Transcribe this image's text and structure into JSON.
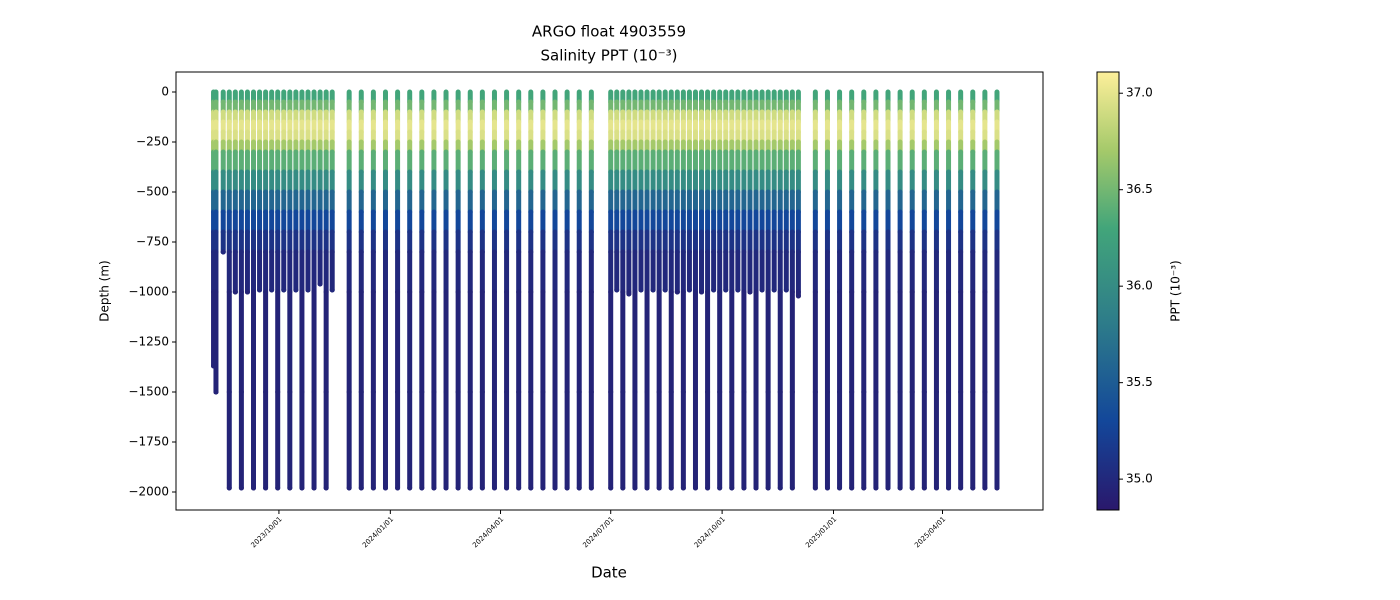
{
  "chart_data": {
    "type": "scatter",
    "title": "ARGO float 4903559",
    "subtitle": "Salinity PPT (10⁻³)",
    "x_label": "Date",
    "y_label": "Depth (m)",
    "colorbar_label": "PPT (10⁻³)",
    "xlim": [
      "2023/07/08",
      "2025/06/23"
    ],
    "xticks": [
      "2023/10/01",
      "2024/01/01",
      "2024/04/01",
      "2024/07/01",
      "2024/10/01",
      "2025/01/01",
      "2025/04/01"
    ],
    "ylim": [
      -2090,
      100
    ],
    "yticks": [
      0,
      {
        "value": -250,
        "label": "−250"
      },
      {
        "value": -500,
        "label": "−500"
      },
      {
        "value": -750,
        "label": "−750"
      },
      {
        "value": -1000,
        "label": "−1000"
      },
      {
        "value": -1250,
        "label": "−1250"
      },
      {
        "value": -1500,
        "label": "−1500"
      },
      {
        "value": -1750,
        "label": "−1750"
      },
      {
        "value": -2000,
        "label": "−2000"
      }
    ],
    "clim": [
      34.84,
      37.11
    ],
    "cticks": [
      {
        "value": 35.0,
        "label": "35.0"
      },
      {
        "value": 35.5,
        "label": "35.5"
      },
      {
        "value": 36.0,
        "label": "36.0"
      },
      {
        "value": 36.5,
        "label": "36.5"
      },
      {
        "value": 37.0,
        "label": "37.0"
      }
    ],
    "colormap": [
      {
        "value": 34.84,
        "color": "#2a186c"
      },
      {
        "value": 35.3,
        "color": "#13479a"
      },
      {
        "value": 35.8,
        "color": "#2d7b8a"
      },
      {
        "value": 36.3,
        "color": "#42a57a"
      },
      {
        "value": 36.7,
        "color": "#a4c96a"
      },
      {
        "value": 37.11,
        "color": "#fdef9a"
      }
    ],
    "depths": [
      0,
      -50,
      -100,
      -150,
      -200,
      -250,
      -300,
      -400,
      -500,
      -600,
      -700,
      -800,
      -1000,
      -1500,
      -2000
    ],
    "salinity": [
      36.3,
      36.5,
      36.9,
      37.0,
      36.95,
      36.7,
      36.4,
      36.0,
      35.6,
      35.3,
      35.1,
      35.0,
      34.95,
      34.95,
      34.97
    ],
    "dates": [
      "2023/08/08",
      "2023/08/10",
      "2023/08/16",
      "2023/08/21",
      "2023/08/26",
      "2023/08/31",
      "2023/09/05",
      "2023/09/10",
      "2023/09/15",
      "2023/09/20",
      "2023/09/25",
      "2023/09/30",
      "2023/10/05",
      "2023/10/10",
      "2023/10/15",
      "2023/10/20",
      "2023/10/25",
      "2023/10/30",
      "2023/11/04",
      "2023/11/09",
      "2023/11/14",
      "2023/11/28",
      "2023/12/08",
      "2023/12/18",
      "2023/12/28",
      "2024/01/07",
      "2024/01/17",
      "2024/01/27",
      "2024/02/06",
      "2024/02/16",
      "2024/02/26",
      "2024/03/07",
      "2024/03/17",
      "2024/03/27",
      "2024/04/06",
      "2024/04/16",
      "2024/04/26",
      "2024/05/06",
      "2024/05/16",
      "2024/05/26",
      "2024/06/05",
      "2024/06/15",
      "2024/07/01",
      "2024/07/06",
      "2024/07/11",
      "2024/07/16",
      "2024/07/21",
      "2024/07/26",
      "2024/07/31",
      "2024/08/05",
      "2024/08/10",
      "2024/08/15",
      "2024/08/20",
      "2024/08/25",
      "2024/08/30",
      "2024/09/04",
      "2024/09/09",
      "2024/09/14",
      "2024/09/19",
      "2024/09/24",
      "2024/09/29",
      "2024/10/04",
      "2024/10/09",
      "2024/10/14",
      "2024/10/19",
      "2024/10/24",
      "2024/10/29",
      "2024/11/03",
      "2024/11/08",
      "2024/11/13",
      "2024/11/18",
      "2024/11/23",
      "2024/11/28",
      "2024/12/03",
      "2024/12/17",
      "2024/12/27",
      "2025/01/06",
      "2025/01/16",
      "2025/01/26",
      "2025/02/05",
      "2025/02/15",
      "2025/02/25",
      "2025/03/07",
      "2025/03/17",
      "2025/03/27",
      "2025/04/06",
      "2025/04/16",
      "2025/04/26",
      "2025/05/06",
      "2025/05/16"
    ],
    "max_depths": [
      -1370,
      -1500,
      -800,
      -1980,
      -1000,
      -1980,
      -1000,
      -1980,
      -990,
      -1980,
      -990,
      -1980,
      -990,
      -1980,
      -990,
      -1980,
      -990,
      -1980,
      -960,
      -1980,
      -990,
      -1980,
      -1980,
      -1980,
      -1980,
      -1980,
      -1980,
      -1980,
      -1980,
      -1980,
      -1980,
      -1980,
      -1980,
      -1980,
      -1980,
      -1980,
      -1980,
      -1980,
      -1980,
      -1980,
      -1980,
      -1980,
      -1980,
      -990,
      -1980,
      -1010,
      -1980,
      -990,
      -1980,
      -990,
      -1980,
      -990,
      -1980,
      -1000,
      -1980,
      -990,
      -1980,
      -1000,
      -1980,
      -990,
      -1980,
      -990,
      -1980,
      -990,
      -1980,
      -1000,
      -1980,
      -990,
      -1980,
      -990,
      -1980,
      -990,
      -1980,
      -1020,
      -1980,
      -1980,
      -1980,
      -1980,
      -1980,
      -1980,
      -1980,
      -1980,
      -1980,
      -1980,
      -1980,
      -1980,
      -1980,
      -1980,
      -1980,
      -1980
    ]
  }
}
